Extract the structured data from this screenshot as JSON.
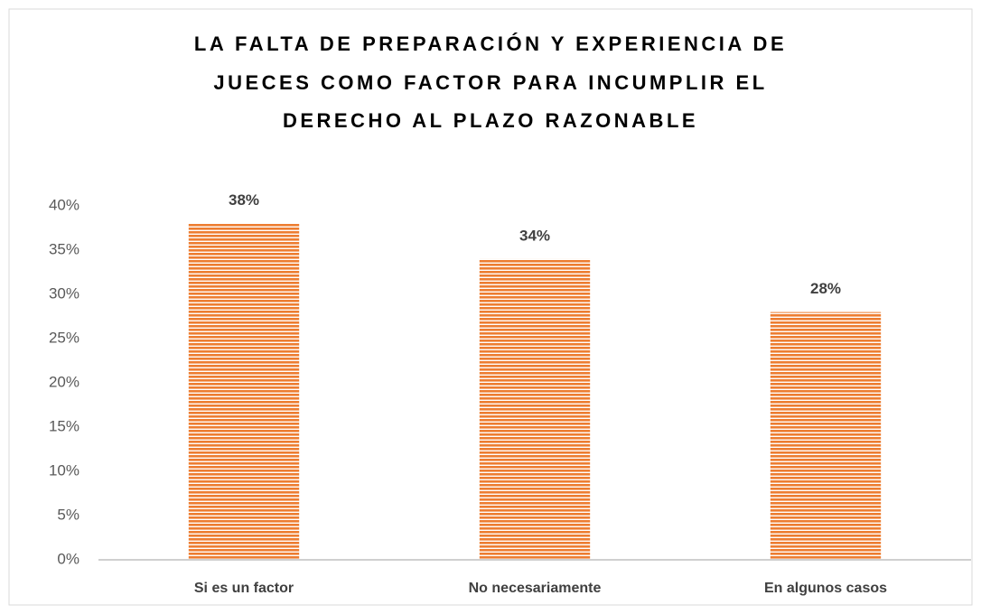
{
  "chart_data": {
    "type": "bar",
    "title": [
      "LA FALTA DE PREPARACIÓN Y EXPERIENCIA DE",
      "JUECES COMO FACTOR PARA INCUMPLIR EL",
      "DERECHO AL PLAZO RAZONABLE"
    ],
    "categories": [
      "Si es un factor",
      "No necesariamente",
      "En algunos casos"
    ],
    "values": [
      38,
      34,
      28
    ],
    "value_labels": [
      "38%",
      "34%",
      "28%"
    ],
    "color": "#ed7d31",
    "ylim": [
      0,
      40
    ],
    "yticks": [
      {
        "value": 0,
        "label": "0%"
      },
      {
        "value": 5,
        "label": "5%"
      },
      {
        "value": 10,
        "label": "10%"
      },
      {
        "value": 15,
        "label": "15%"
      },
      {
        "value": 20,
        "label": "20%"
      },
      {
        "value": 25,
        "label": "25%"
      },
      {
        "value": 30,
        "label": "30%"
      },
      {
        "value": 35,
        "label": "35%"
      },
      {
        "value": 40,
        "label": "40%"
      }
    ],
    "grid": false
  }
}
